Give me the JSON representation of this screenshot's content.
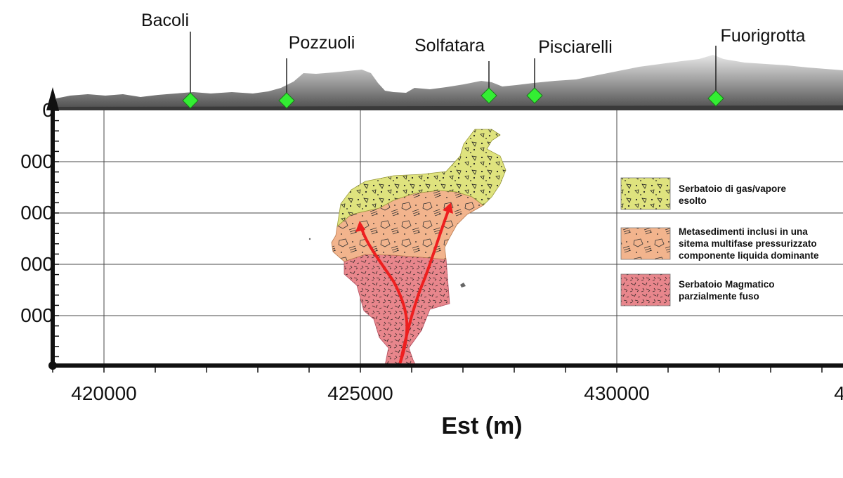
{
  "places": [
    {
      "name": "Bacoli"
    },
    {
      "name": "Pozzuoli"
    },
    {
      "name": "Solfatara"
    },
    {
      "name": "Pisciarelli"
    },
    {
      "name": "Fuorigrotta"
    }
  ],
  "x_axis": {
    "title": "Est (m)",
    "ticks": [
      "420000",
      "425000",
      "430000",
      "4"
    ]
  },
  "y_axis": {
    "ticks": [
      "0",
      "000",
      "000",
      "000",
      "000"
    ]
  },
  "legend": [
    {
      "lines": [
        "Serbatoio di gas/vapore",
        "esolto"
      ],
      "pattern": "gas-vapor"
    },
    {
      "lines": [
        "Metasedimenti inclusi in una",
        "sitema multifase pressurizzato",
        "componente liquida dominante"
      ],
      "pattern": "metasediments"
    },
    {
      "lines": [
        "Serbatoio Magmatico",
        "parzialmente fuso"
      ],
      "pattern": "magma"
    }
  ],
  "colors": {
    "marker": "#33ee33",
    "gas_vapor": "#dfe37e",
    "metasediments": "#f2b48d",
    "magma": "#e8868c",
    "flow_arrows": "#ee1f1f",
    "terrain": "#8c8c8c"
  }
}
